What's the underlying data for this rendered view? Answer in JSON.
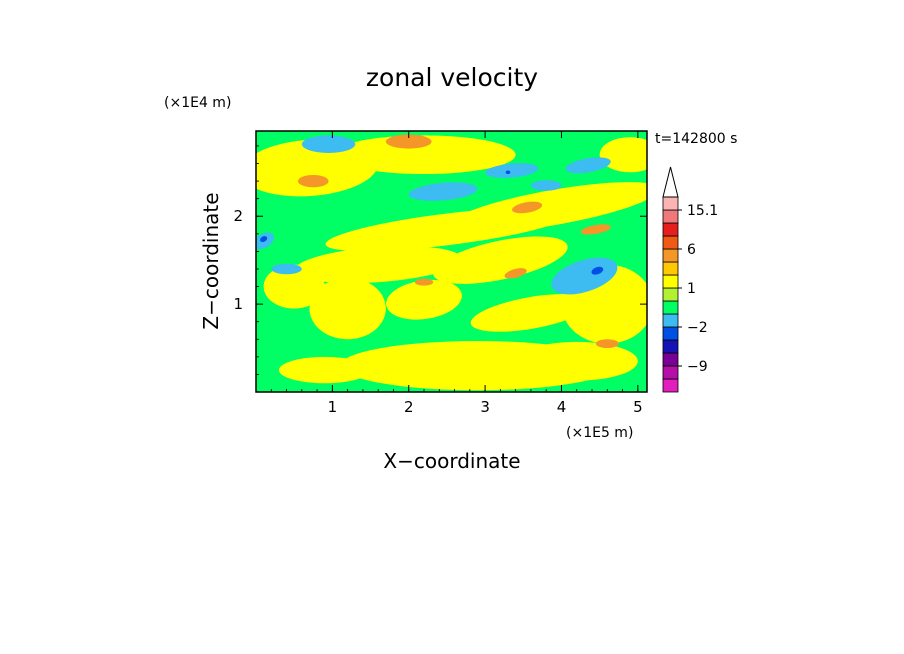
{
  "chart_data": {
    "type": "heatmap",
    "title": "zonal velocity",
    "xlabel": "X−coordinate",
    "ylabel": "Z−coordinate",
    "x_unit": "(×1E5 m)",
    "y_unit": "(×1E4 m)",
    "time_label": "t=142800 s",
    "xlim": [
      0,
      5.12
    ],
    "ylim": [
      0,
      2.97
    ],
    "x_ticks": [
      1,
      2,
      3,
      4,
      5
    ],
    "y_ticks": [
      1,
      2
    ],
    "colorbar": {
      "levels": [
        -15,
        -12,
        -9,
        -6,
        -3,
        -2,
        -1,
        0,
        1,
        2,
        3,
        6,
        9,
        12,
        15.1
      ],
      "colors": [
        "#e31ebe",
        "#b40fa7",
        "#780096",
        "#1414b4",
        "#0050e6",
        "#3cbcf0",
        "#00ff64",
        "#b4f032",
        "#ffff00",
        "#ffc800",
        "#f59628",
        "#f05a14",
        "#e61e1e",
        "#f07878",
        "#fab4b4"
      ],
      "extend_top_color": "#ffffff",
      "labels": [
        {
          "text": "15.1",
          "value": 15.1
        },
        {
          "text": "6",
          "value": 6
        },
        {
          "text": "1",
          "value": 1
        },
        {
          "text": "−2",
          "value": -2
        },
        {
          "text": "−9",
          "value": -9
        }
      ]
    },
    "regions": [
      {
        "name": "mixed-layer-green",
        "color": "#00ff64"
      },
      {
        "name": "yellow-band",
        "color": "#ffff00"
      },
      {
        "name": "cyan-pocket",
        "color": "#3cbcf0"
      },
      {
        "name": "orange-cell",
        "color": "#f59628"
      },
      {
        "name": "blue-core",
        "color": "#0050e6"
      }
    ]
  }
}
